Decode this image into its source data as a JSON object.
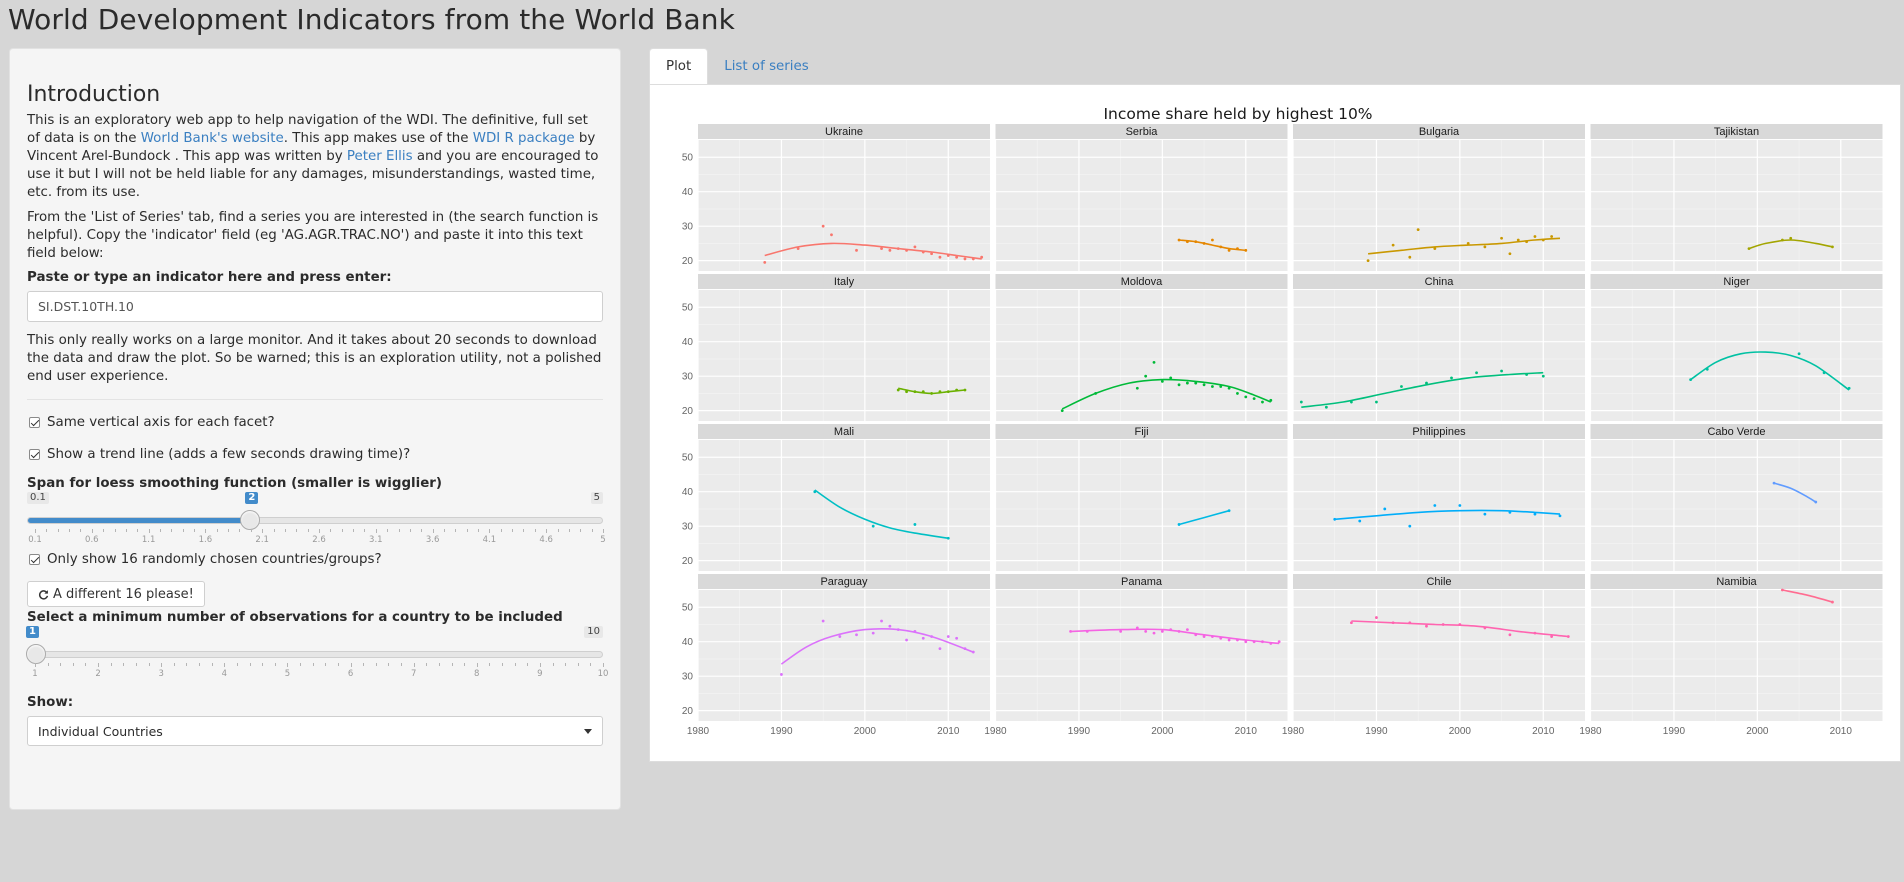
{
  "app": {
    "title": "World Development Indicators from the World Bank"
  },
  "sidebar": {
    "heading": "Introduction",
    "intro": {
      "t1": "This is an exploratory web app to help navigation of the WDI. The definitive, full set of data is on the ",
      "link1": "World Bank's website",
      "t2": ". This app makes use of the ",
      "link2": "WDI R package",
      "t3": " by Vincent Arel-Bundock . This app was written by ",
      "link3": "Peter Ellis",
      "t4": " and you are encouraged to use it but I will not be held liable for any damages, misunderstandings, wasted time, etc. from its use."
    },
    "instructions": "From the 'List of Series' tab, find a series you are interested in (the search function is helpful). Copy the 'indicator' field (eg 'AG.AGR.TRAC.NO') and paste it into this text field below:",
    "indicator_label": "Paste or type an indicator here and press enter:",
    "indicator_value": "SI.DST.10TH.10",
    "warning": "This only really works on a large monitor. And it takes about 20 seconds to download the data and draw the plot. So be warned; this is an exploration utility, not a polished end user experience.",
    "same_axis_label": "Same vertical axis for each facet?",
    "trend_label": "Show a trend line (adds a few seconds drawing time)?",
    "span_label": "Span for loess smoothing function (smaller is wigglier)",
    "span_slider": {
      "min": 0.1,
      "max": 5,
      "value": 2,
      "min_label": "0.1",
      "max_label": "5",
      "value_label": "2",
      "tick_labels": [
        "0.1",
        "0.6",
        "1.1",
        "1.6",
        "2.1",
        "2.6",
        "3.1",
        "3.6",
        "4.1",
        "4.6",
        "5"
      ]
    },
    "random_label": "Only show 16 randomly chosen countries/groups?",
    "refresh_button": "A different 16 please!",
    "min_obs_label": "Select a minimum number of observations for a country to be included",
    "min_obs_slider": {
      "min": 1,
      "max": 10,
      "value": 1,
      "min_label": "1",
      "max_label": "10",
      "value_label": "1",
      "tick_labels": [
        "1",
        "2",
        "3",
        "4",
        "5",
        "6",
        "7",
        "8",
        "9",
        "10"
      ]
    },
    "show_label": "Show:",
    "show_value": "Individual Countries"
  },
  "tabs": [
    {
      "label": "Plot",
      "active": true
    },
    {
      "label": "List of series",
      "active": false
    }
  ],
  "chart_data": {
    "type": "line",
    "title": "Income share held by highest 10%",
    "xlabel": "",
    "ylabel": "",
    "xlim": [
      1980,
      2015
    ],
    "ylim": [
      17,
      55
    ],
    "x_ticks": [
      1980,
      1990,
      2000,
      2010
    ],
    "y_ticks": [
      20,
      30,
      40,
      50
    ],
    "grid": true,
    "facets": [
      {
        "name": "Ukraine",
        "color": "#F8766D",
        "points": [
          [
            1988,
            19.5
          ],
          [
            1992,
            23.5
          ],
          [
            1995,
            30
          ],
          [
            1996,
            27.5
          ],
          [
            1999,
            23
          ],
          [
            2002,
            23.5
          ],
          [
            2003,
            23
          ],
          [
            2004,
            23.5
          ],
          [
            2005,
            23
          ],
          [
            2006,
            24
          ],
          [
            2007,
            22.5
          ],
          [
            2008,
            22
          ],
          [
            2009,
            21
          ],
          [
            2010,
            21.5
          ],
          [
            2011,
            21
          ],
          [
            2012,
            20.5
          ],
          [
            2013,
            20.5
          ],
          [
            2014,
            21
          ]
        ],
        "trend": [
          [
            1988,
            21.5
          ],
          [
            1992,
            24
          ],
          [
            1996,
            25
          ],
          [
            2000,
            24.5
          ],
          [
            2004,
            23.5
          ],
          [
            2008,
            22.5
          ],
          [
            2011,
            21.5
          ],
          [
            2014,
            20.5
          ]
        ]
      },
      {
        "name": "Serbia",
        "color": "#E58700",
        "points": [
          [
            2002,
            26
          ],
          [
            2003,
            25.5
          ],
          [
            2004,
            25.5
          ],
          [
            2005,
            25
          ],
          [
            2006,
            26
          ],
          [
            2007,
            24
          ],
          [
            2008,
            23
          ],
          [
            2009,
            23.5
          ],
          [
            2010,
            23
          ]
        ],
        "trend": [
          [
            2002,
            26
          ],
          [
            2004,
            25.5
          ],
          [
            2006,
            24.5
          ],
          [
            2008,
            23.5
          ],
          [
            2010,
            23
          ]
        ]
      },
      {
        "name": "Bulgaria",
        "color": "#C99800",
        "points": [
          [
            1989,
            20
          ],
          [
            1992,
            24.5
          ],
          [
            1994,
            21
          ],
          [
            1995,
            29
          ],
          [
            1997,
            23.5
          ],
          [
            2001,
            25
          ],
          [
            2003,
            24
          ],
          [
            2005,
            26.5
          ],
          [
            2006,
            22
          ],
          [
            2007,
            26
          ],
          [
            2008,
            25.5
          ],
          [
            2009,
            27
          ],
          [
            2010,
            26
          ],
          [
            2011,
            27
          ]
        ],
        "trend": [
          [
            1989,
            22
          ],
          [
            1993,
            23
          ],
          [
            1997,
            24
          ],
          [
            2001,
            24.5
          ],
          [
            2005,
            25
          ],
          [
            2009,
            26
          ],
          [
            2012,
            26.5
          ]
        ]
      },
      {
        "name": "Tajikistan",
        "color": "#A3A500",
        "points": [
          [
            1999,
            23.5
          ],
          [
            2003,
            26
          ],
          [
            2004,
            26.5
          ],
          [
            2009,
            24
          ]
        ],
        "trend": [
          [
            1999,
            23.5
          ],
          [
            2001,
            25
          ],
          [
            2004,
            26
          ],
          [
            2007,
            25
          ],
          [
            2009,
            24
          ]
        ]
      },
      {
        "name": "Italy",
        "color": "#6BB100",
        "points": [
          [
            2004,
            26
          ],
          [
            2005,
            25.5
          ],
          [
            2006,
            25.5
          ],
          [
            2007,
            25.5
          ],
          [
            2008,
            25
          ],
          [
            2009,
            25.5
          ],
          [
            2010,
            25.5
          ],
          [
            2011,
            26
          ],
          [
            2012,
            26
          ]
        ],
        "trend": [
          [
            2004,
            26.5
          ],
          [
            2006,
            25.5
          ],
          [
            2008,
            25
          ],
          [
            2010,
            25.5
          ],
          [
            2012,
            26
          ]
        ]
      },
      {
        "name": "Moldova",
        "color": "#00BA38",
        "points": [
          [
            1988,
            20
          ],
          [
            1992,
            25
          ],
          [
            1997,
            26.5
          ],
          [
            1998,
            30
          ],
          [
            1999,
            34
          ],
          [
            2000,
            28.5
          ],
          [
            2001,
            29.5
          ],
          [
            2002,
            27.5
          ],
          [
            2003,
            28
          ],
          [
            2004,
            28
          ],
          [
            2005,
            27.5
          ],
          [
            2006,
            27
          ],
          [
            2007,
            27
          ],
          [
            2008,
            26.5
          ],
          [
            2009,
            25
          ],
          [
            2010,
            24
          ],
          [
            2011,
            23.5
          ],
          [
            2012,
            22.5
          ],
          [
            2013,
            23
          ]
        ],
        "trend": [
          [
            1988,
            20.5
          ],
          [
            1992,
            25
          ],
          [
            1996,
            28
          ],
          [
            2000,
            29
          ],
          [
            2004,
            28.5
          ],
          [
            2008,
            27
          ],
          [
            2011,
            24.5
          ],
          [
            2013,
            22.5
          ]
        ]
      },
      {
        "name": "China",
        "color": "#00BF7D",
        "points": [
          [
            1981,
            22.5
          ],
          [
            1984,
            21
          ],
          [
            1987,
            22.5
          ],
          [
            1990,
            22.5
          ],
          [
            1993,
            27
          ],
          [
            1996,
            28
          ],
          [
            1999,
            29.5
          ],
          [
            2002,
            31
          ],
          [
            2005,
            31.5
          ],
          [
            2008,
            30.5
          ],
          [
            2010,
            30
          ]
        ],
        "trend": [
          [
            1981,
            21
          ],
          [
            1986,
            22.5
          ],
          [
            1991,
            25
          ],
          [
            1996,
            27.5
          ],
          [
            2001,
            29.5
          ],
          [
            2006,
            30.5
          ],
          [
            2010,
            31
          ]
        ]
      },
      {
        "name": "Niger",
        "color": "#00C1A3",
        "points": [
          [
            1992,
            29
          ],
          [
            1994,
            32
          ],
          [
            2005,
            36.5
          ],
          [
            2008,
            31
          ],
          [
            2011,
            26.5
          ]
        ],
        "trend": [
          [
            1992,
            29
          ],
          [
            1995,
            34
          ],
          [
            1998,
            36.5
          ],
          [
            2001,
            37
          ],
          [
            2004,
            36
          ],
          [
            2007,
            33
          ],
          [
            2011,
            26
          ]
        ]
      },
      {
        "name": "Mali",
        "color": "#00BFC4",
        "points": [
          [
            1994,
            40
          ],
          [
            2001,
            30
          ],
          [
            2006,
            30.5
          ],
          [
            2010,
            26.5
          ]
        ],
        "trend": [
          [
            1994,
            40.5
          ],
          [
            1997,
            35.5
          ],
          [
            2000,
            32
          ],
          [
            2003,
            29.5
          ],
          [
            2006,
            28
          ],
          [
            2010,
            26.5
          ]
        ]
      },
      {
        "name": "Fiji",
        "color": "#00B9E3",
        "points": [
          [
            2002,
            30.5
          ],
          [
            2008,
            34.5
          ]
        ],
        "trend": [
          [
            2002,
            30.5
          ],
          [
            2005,
            32.5
          ],
          [
            2008,
            34.5
          ]
        ]
      },
      {
        "name": "Philippines",
        "color": "#00ADFA",
        "points": [
          [
            1985,
            32
          ],
          [
            1988,
            31.5
          ],
          [
            1991,
            35
          ],
          [
            1994,
            30
          ],
          [
            1997,
            36
          ],
          [
            2000,
            36
          ],
          [
            2003,
            33.5
          ],
          [
            2006,
            34
          ],
          [
            2009,
            33.5
          ],
          [
            2012,
            33
          ]
        ],
        "trend": [
          [
            1985,
            32
          ],
          [
            1990,
            33
          ],
          [
            1995,
            34
          ],
          [
            2000,
            34.5
          ],
          [
            2005,
            34.5
          ],
          [
            2009,
            34
          ],
          [
            2012,
            33.5
          ]
        ]
      },
      {
        "name": "Cabo Verde",
        "color": "#619CFF",
        "points": [
          [
            2002,
            42.5
          ],
          [
            2007,
            37
          ]
        ],
        "trend": [
          [
            2002,
            42.5
          ],
          [
            2004,
            41
          ],
          [
            2006,
            38.5
          ],
          [
            2007,
            37
          ]
        ]
      },
      {
        "name": "Paraguay",
        "color": "#DB72FB",
        "points": [
          [
            1990,
            30.5
          ],
          [
            1995,
            46
          ],
          [
            1997,
            41.5
          ],
          [
            1999,
            42
          ],
          [
            2001,
            42.5
          ],
          [
            2002,
            46
          ],
          [
            2003,
            44.5
          ],
          [
            2004,
            43.5
          ],
          [
            2005,
            40.5
          ],
          [
            2006,
            43
          ],
          [
            2007,
            41
          ],
          [
            2008,
            41.5
          ],
          [
            2009,
            38
          ],
          [
            2010,
            41.5
          ],
          [
            2011,
            41
          ],
          [
            2012,
            38
          ],
          [
            2013,
            37
          ]
        ],
        "trend": [
          [
            1990,
            33.5
          ],
          [
            1993,
            38.5
          ],
          [
            1996,
            41.5
          ],
          [
            2000,
            43.5
          ],
          [
            2004,
            43.5
          ],
          [
            2008,
            41.5
          ],
          [
            2013,
            37
          ]
        ]
      },
      {
        "name": "Panama",
        "color": "#F564E3",
        "points": [
          [
            1989,
            43
          ],
          [
            1991,
            43
          ],
          [
            1995,
            43
          ],
          [
            1997,
            44
          ],
          [
            1998,
            43
          ],
          [
            1999,
            42.5
          ],
          [
            2000,
            43
          ],
          [
            2001,
            43.5
          ],
          [
            2002,
            43
          ],
          [
            2003,
            43.5
          ],
          [
            2004,
            42
          ],
          [
            2005,
            41.5
          ],
          [
            2006,
            41.5
          ],
          [
            2007,
            41
          ],
          [
            2008,
            40.5
          ],
          [
            2009,
            40.5
          ],
          [
            2010,
            40
          ],
          [
            2011,
            40
          ],
          [
            2012,
            40
          ],
          [
            2013,
            39.5
          ],
          [
            2014,
            40
          ]
        ],
        "trend": [
          [
            1989,
            43
          ],
          [
            1995,
            43.5
          ],
          [
            2000,
            43.5
          ],
          [
            2005,
            42
          ],
          [
            2010,
            40.5
          ],
          [
            2014,
            39.5
          ]
        ]
      },
      {
        "name": "Chile",
        "color": "#FF64B0",
        "points": [
          [
            1987,
            45.5
          ],
          [
            1990,
            47
          ],
          [
            1992,
            45.5
          ],
          [
            1994,
            45.5
          ],
          [
            1996,
            44.5
          ],
          [
            1998,
            45
          ],
          [
            2000,
            45
          ],
          [
            2003,
            44
          ],
          [
            2006,
            42
          ],
          [
            2009,
            42.5
          ],
          [
            2011,
            41.5
          ],
          [
            2013,
            41.5
          ]
        ],
        "trend": [
          [
            1987,
            46
          ],
          [
            1992,
            45.5
          ],
          [
            1997,
            45
          ],
          [
            2002,
            44.5
          ],
          [
            2007,
            43
          ],
          [
            2011,
            42
          ],
          [
            2013,
            41.5
          ]
        ]
      },
      {
        "name": "Namibia",
        "color": "#FF6C91",
        "points": [
          [
            2003,
            55
          ],
          [
            2009,
            51.5
          ]
        ],
        "trend": [
          [
            2003,
            55
          ],
          [
            2006,
            53.5
          ],
          [
            2009,
            51.5
          ]
        ]
      }
    ]
  }
}
